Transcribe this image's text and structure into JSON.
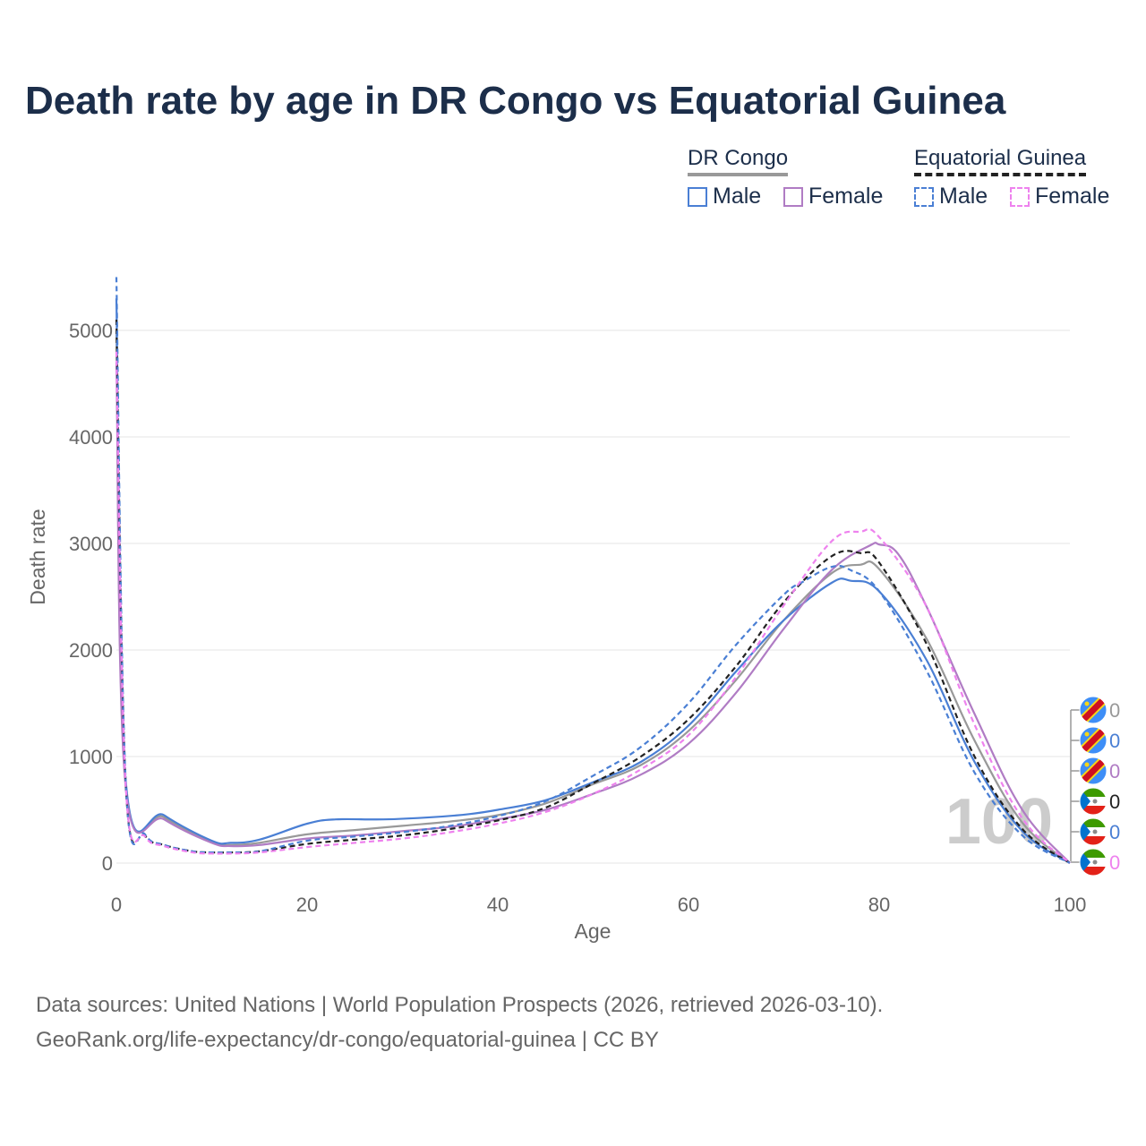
{
  "title": "Death rate by age in DR Congo vs Equatorial Guinea",
  "legend": {
    "group1": {
      "name": "DR Congo",
      "male": "Male",
      "female": "Female",
      "total_color": "#999999"
    },
    "group2": {
      "name": "Equatorial Guinea",
      "male": "Male",
      "female": "Female",
      "total_color": "#222222"
    }
  },
  "source": {
    "line1": "Data sources: United Nations | World Population Prospects (2026, retrieved 2026-03-10).",
    "line2": "GeoRank.org/life-expectancy/dr-congo/equatorial-guinea | CC BY"
  },
  "watermark": "100",
  "end_labels": [
    {
      "value": "0",
      "color": "#999999",
      "flag": "drc"
    },
    {
      "value": "0",
      "color": "#4a7fd4",
      "flag": "drc"
    },
    {
      "value": "0",
      "color": "#b07cc4",
      "flag": "drc"
    },
    {
      "value": "0",
      "color": "#222222",
      "flag": "gq"
    },
    {
      "value": "0",
      "color": "#4a7fd4",
      "flag": "gq"
    },
    {
      "value": "0",
      "color": "#ee82ee",
      "flag": "gq"
    }
  ],
  "chart_data": {
    "type": "line",
    "title": "Death rate by age in DR Congo vs Equatorial Guinea",
    "xlabel": "Age",
    "ylabel": "Death rate",
    "xlim": [
      0,
      100
    ],
    "ylim": [
      0,
      5500
    ],
    "xticks": [
      "0",
      "20",
      "40",
      "60",
      "80",
      "100"
    ],
    "yticks": [
      "0",
      "1000",
      "2000",
      "3000",
      "4000",
      "5000"
    ],
    "grid": true,
    "series": [
      {
        "name": "DR Congo Total",
        "color": "#999999",
        "dash": false,
        "x": [
          0,
          1,
          5,
          10,
          12,
          15,
          20,
          25,
          30,
          35,
          40,
          45,
          50,
          55,
          60,
          65,
          70,
          75,
          78,
          80,
          85,
          90,
          95,
          100
        ],
        "y": [
          5000,
          720,
          430,
          200,
          170,
          190,
          270,
          310,
          350,
          390,
          450,
          560,
          740,
          920,
          1240,
          1720,
          2280,
          2720,
          2800,
          2760,
          2100,
          1150,
          380,
          0
        ]
      },
      {
        "name": "DR Congo Male",
        "color": "#4a7fd4",
        "dash": false,
        "x": [
          0,
          1,
          5,
          10,
          12,
          15,
          20,
          23,
          28,
          33,
          37,
          40,
          45,
          50,
          55,
          60,
          65,
          70,
          75,
          77,
          80,
          85,
          90,
          95,
          100
        ],
        "y": [
          5300,
          750,
          450,
          210,
          190,
          220,
          370,
          410,
          410,
          430,
          460,
          500,
          590,
          760,
          950,
          1290,
          1800,
          2280,
          2630,
          2650,
          2550,
          1900,
          950,
          300,
          0
        ]
      },
      {
        "name": "DR Congo Female",
        "color": "#b07cc4",
        "dash": false,
        "x": [
          0,
          1,
          5,
          10,
          12,
          15,
          20,
          25,
          30,
          35,
          40,
          45,
          50,
          55,
          60,
          65,
          70,
          75,
          79,
          80,
          82,
          85,
          90,
          95,
          100
        ],
        "y": [
          4700,
          690,
          410,
          190,
          160,
          170,
          230,
          260,
          300,
          340,
          410,
          500,
          650,
          830,
          1120,
          1600,
          2200,
          2750,
          2980,
          2990,
          2900,
          2400,
          1400,
          500,
          0
        ]
      },
      {
        "name": "Equatorial Guinea Total",
        "color": "#222222",
        "dash": true,
        "x": [
          0,
          1,
          3,
          5,
          8,
          10,
          12,
          15,
          20,
          25,
          30,
          35,
          40,
          45,
          50,
          55,
          60,
          65,
          70,
          75,
          78,
          80,
          85,
          90,
          95,
          100
        ],
        "y": [
          5100,
          700,
          260,
          170,
          110,
          100,
          100,
          110,
          180,
          220,
          260,
          320,
          400,
          520,
          750,
          1000,
          1350,
          1850,
          2450,
          2880,
          2910,
          2820,
          2050,
          1000,
          320,
          0
        ]
      },
      {
        "name": "Equatorial Guinea Male",
        "color": "#4a7fd4",
        "dash": true,
        "x": [
          0,
          1,
          3,
          5,
          8,
          10,
          12,
          15,
          20,
          25,
          30,
          35,
          40,
          45,
          50,
          55,
          60,
          65,
          70,
          72,
          75,
          77,
          80,
          85,
          90,
          95,
          100
        ],
        "y": [
          5500,
          720,
          270,
          170,
          110,
          100,
          100,
          110,
          210,
          250,
          290,
          350,
          440,
          580,
          820,
          1090,
          1500,
          2050,
          2520,
          2640,
          2780,
          2750,
          2550,
          1800,
          850,
          260,
          0
        ]
      },
      {
        "name": "Equatorial Guinea Female",
        "color": "#ee82ee",
        "dash": true,
        "x": [
          0,
          1,
          3,
          5,
          8,
          10,
          12,
          15,
          20,
          25,
          30,
          35,
          40,
          45,
          50,
          55,
          60,
          65,
          70,
          75,
          78,
          80,
          85,
          90,
          95,
          100
        ],
        "y": [
          4800,
          690,
          250,
          160,
          100,
          90,
          90,
          100,
          150,
          190,
          230,
          290,
          370,
          480,
          650,
          880,
          1200,
          1750,
          2420,
          3020,
          3110,
          3060,
          2400,
          1300,
          420,
          0
        ]
      }
    ]
  }
}
